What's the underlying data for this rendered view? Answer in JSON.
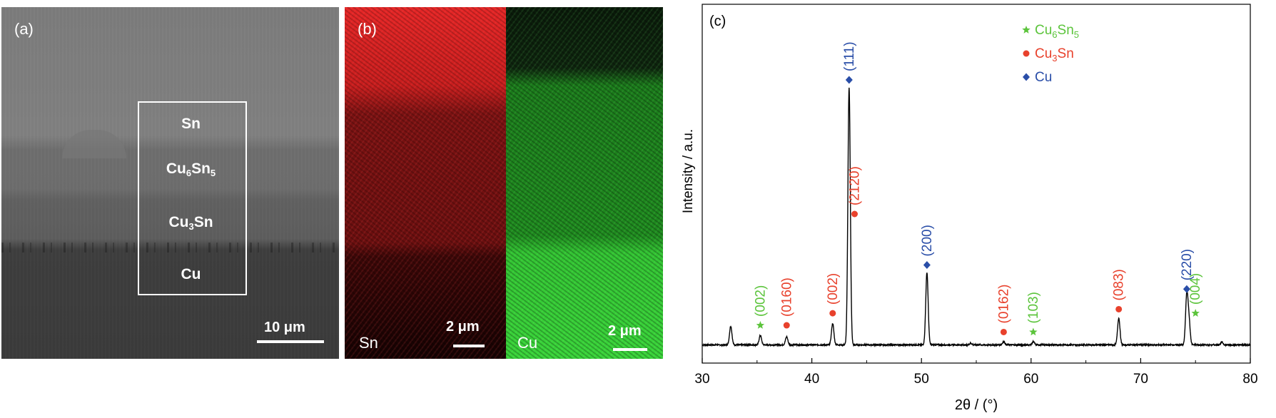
{
  "panel_a": {
    "tag": "(a)",
    "layers": [
      {
        "label": "Sn",
        "sub": "",
        "tail": "",
        "sub2": ""
      },
      {
        "label": "Cu",
        "sub": "6",
        "tail": "Sn",
        "sub2": "5"
      },
      {
        "label": "Cu",
        "sub": "3",
        "tail": "Sn",
        "sub2": ""
      },
      {
        "label": "Cu",
        "sub": "",
        "tail": "",
        "sub2": ""
      }
    ],
    "scale": "10 μm"
  },
  "panel_b": {
    "tag": "(b)",
    "sn_map": {
      "element": "Sn",
      "scale": "2 μm"
    },
    "cu_map": {
      "element": "Cu",
      "scale": "2 μm"
    }
  },
  "chart_data": {
    "type": "line",
    "tag": "(c)",
    "xlabel": "2θ / (°)",
    "ylabel": "Intensity / a.u.",
    "xlim": [
      30,
      80
    ],
    "ylim": [
      0,
      100
    ],
    "xticks": [
      30,
      40,
      50,
      60,
      70,
      80
    ],
    "grid": false,
    "legend_position": "top-right",
    "colors": {
      "Cu6Sn5": "#5cc43c",
      "Cu3Sn": "#e8412c",
      "Cu": "#2a4ea8",
      "line": "#000000"
    },
    "legend": [
      {
        "key": "Cu6Sn5",
        "marker": "star",
        "label": "Cu",
        "sub": "6",
        "tail": "Sn",
        "sub2": "5"
      },
      {
        "key": "Cu3Sn",
        "marker": "circle",
        "label": "Cu",
        "sub": "3",
        "tail": "Sn",
        "sub2": ""
      },
      {
        "key": "Cu",
        "marker": "diamond",
        "label": "Cu",
        "sub": "",
        "tail": "",
        "sub2": ""
      }
    ],
    "peaks": [
      {
        "x": 32.6,
        "y": 7
      },
      {
        "x": 35.3,
        "y": 3.5
      },
      {
        "x": 37.7,
        "y": 3
      },
      {
        "x": 41.9,
        "y": 8
      },
      {
        "x": 43.4,
        "y": 96
      },
      {
        "x": 50.5,
        "y": 27
      },
      {
        "x": 54.5,
        "y": 0.6
      },
      {
        "x": 57.5,
        "y": 1.2
      },
      {
        "x": 60.2,
        "y": 1.2
      },
      {
        "x": 68.0,
        "y": 10
      },
      {
        "x": 74.2,
        "y": 18
      },
      {
        "x": 74.4,
        "y": 9
      },
      {
        "x": 77.4,
        "y": 1
      }
    ],
    "annotations": [
      {
        "phase": "Cu6Sn5",
        "x": 35.3,
        "label": "(002)",
        "y": 8.5
      },
      {
        "phase": "Cu3Sn",
        "x": 37.7,
        "label": "(0160)",
        "y": 8.5
      },
      {
        "phase": "Cu3Sn",
        "x": 41.9,
        "label": "(002)",
        "y": 13
      },
      {
        "phase": "Cu",
        "x": 43.4,
        "label": "(111)",
        "y": 100
      },
      {
        "phase": "Cu3Sn",
        "x": 43.9,
        "label": "(2120)",
        "y": 50
      },
      {
        "phase": "Cu",
        "x": 50.5,
        "label": "(200)",
        "y": 31
      },
      {
        "phase": "Cu3Sn",
        "x": 57.5,
        "label": "(0162)",
        "y": 6
      },
      {
        "phase": "Cu6Sn5",
        "x": 60.2,
        "label": "(103)",
        "y": 6
      },
      {
        "phase": "Cu3Sn",
        "x": 68.0,
        "label": "(083)",
        "y": 14.5
      },
      {
        "phase": "Cu",
        "x": 74.2,
        "label": "(220)",
        "y": 22
      },
      {
        "phase": "Cu6Sn5",
        "x": 75.0,
        "label": "(004)",
        "y": 13
      }
    ]
  }
}
